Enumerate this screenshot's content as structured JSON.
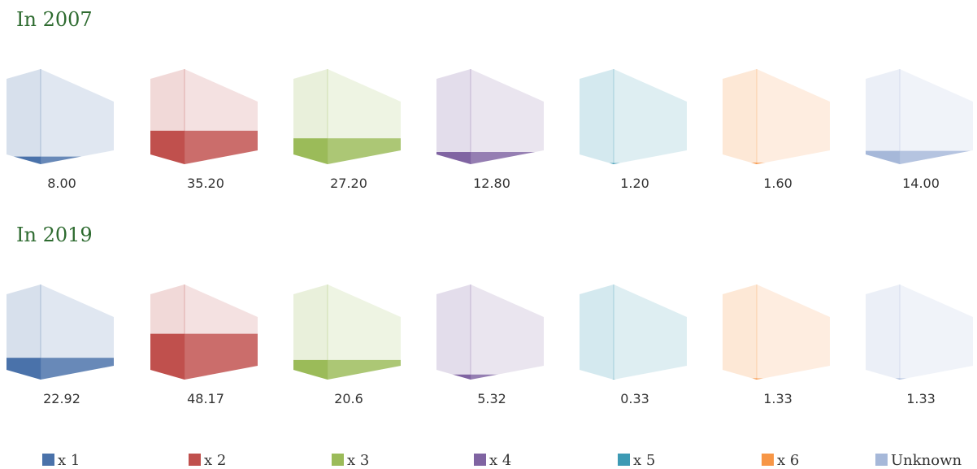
{
  "chart_data": [
    {
      "type": "bar",
      "title": "In 2007",
      "values": [
        8.0,
        35.2,
        27.2,
        12.8,
        1.2,
        1.6,
        14.0
      ],
      "value_labels": [
        "8.00",
        "35.20",
        "27.20",
        "12.80",
        "1.20",
        "1.60",
        "14.00"
      ],
      "ylim": [
        0,
        100
      ]
    },
    {
      "type": "bar",
      "title": "In 2019",
      "values": [
        22.92,
        48.17,
        20.6,
        5.32,
        0.33,
        1.33,
        1.33
      ],
      "value_labels": [
        "22.92",
        "48.17",
        "20.6",
        "5.32",
        "0.33",
        "1.33",
        "1.33"
      ],
      "ylim": [
        0,
        100
      ]
    }
  ],
  "legend": {
    "labels": [
      "x 1",
      "x 2",
      "x 3",
      "x 4",
      "x 5",
      "x 6",
      "Unknown"
    ],
    "colors": [
      "#4a72aa",
      "#c0504d",
      "#9bbb59",
      "#8064a2",
      "#3d9ab4",
      "#f79646",
      "#a6b8d9"
    ]
  }
}
